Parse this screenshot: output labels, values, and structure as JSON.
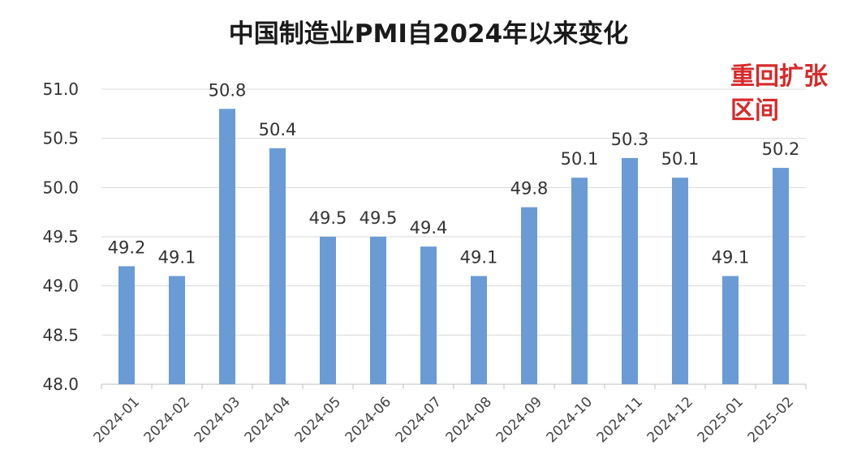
{
  "chart_data": {
    "type": "bar",
    "title": "中国制造业PMI自2024年以来变化",
    "annotation": "重回扩张区间",
    "xlabel": "",
    "ylabel": "",
    "categories": [
      "2024-01",
      "2024-02",
      "2024-03",
      "2024-04",
      "2024-05",
      "2024-06",
      "2024-07",
      "2024-08",
      "2024-09",
      "2024-10",
      "2024-11",
      "2024-12",
      "2025-01",
      "2025-02"
    ],
    "values": [
      49.2,
      49.1,
      50.8,
      50.4,
      49.5,
      49.5,
      49.4,
      49.1,
      49.8,
      50.1,
      50.3,
      50.1,
      49.1,
      50.2
    ],
    "ylim": [
      48.0,
      51.0
    ],
    "yticks": [
      "48.0",
      "48.5",
      "49.0",
      "49.5",
      "50.0",
      "50.5",
      "51.0"
    ],
    "data_labels": [
      "49.2",
      "49.1",
      "50.8",
      "50.4",
      "49.5",
      "49.5",
      "49.4",
      "49.1",
      "49.8",
      "50.1",
      "50.3",
      "50.1",
      "49.1",
      "50.2"
    ],
    "grid": true,
    "legend": "none",
    "bar_color": "#6a9bd4",
    "grid_color": "#d9d9d9"
  }
}
